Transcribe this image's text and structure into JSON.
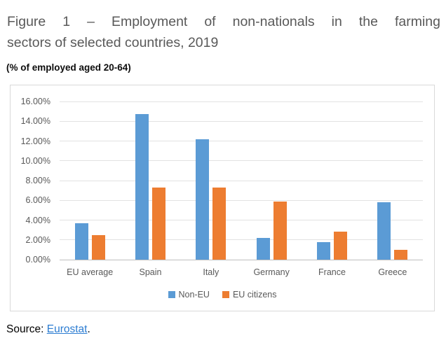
{
  "figure": {
    "title_line1": "Figure 1 – Employment of non-nationals in the farming",
    "title_line2": "sectors of selected countries, 2019",
    "subtitle": "(% of employed aged 20-64)",
    "source_label": "Source: ",
    "source_link": "Eurostat",
    "source_suffix": "."
  },
  "chart_data": {
    "type": "bar",
    "title": "",
    "xlabel": "",
    "ylabel": "",
    "categories": [
      "EU average",
      "Spain",
      "Italy",
      "Germany",
      "France",
      "Greece"
    ],
    "series": [
      {
        "name": "Non-EU",
        "color": "#5B9BD5",
        "values": [
          3.7,
          14.7,
          12.2,
          2.2,
          1.8,
          5.8
        ]
      },
      {
        "name": "EU citizens",
        "color": "#ED7D31",
        "values": [
          2.5,
          7.3,
          7.3,
          5.9,
          2.8,
          1.0
        ]
      }
    ],
    "ylim": [
      0,
      16
    ],
    "y_ticks": [
      "0.00%",
      "2.00%",
      "4.00%",
      "6.00%",
      "8.00%",
      "10.00%",
      "12.00%",
      "14.00%",
      "16.00%"
    ],
    "grid": true,
    "legend_position": "bottom"
  },
  "colors": {
    "series_non_eu": "#5B9BD5",
    "series_eu_citizens": "#ED7D31",
    "gridline": "#E2E2E2",
    "axis_line": "#BFBFBF",
    "chart_border": "#D9D9D9",
    "axis_text": "#595959",
    "title_text": "#595959",
    "link": "#2D7DD2"
  }
}
